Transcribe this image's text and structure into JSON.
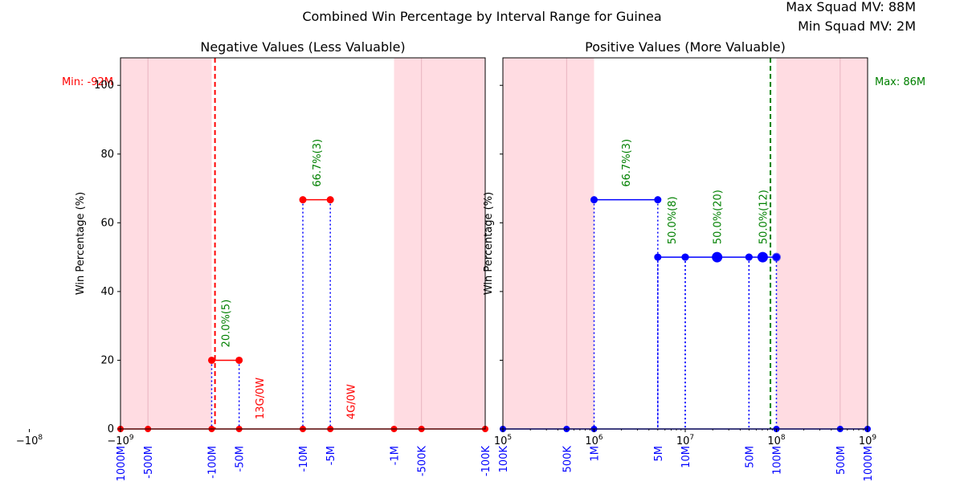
{
  "title": "Combined Win Percentage by Interval Range for Guinea",
  "squad": {
    "max_label": "Max Squad MV: 88M",
    "min_label": "Min Squad MV: 2M"
  },
  "ylabel": "Win Percentage (%)",
  "yticks": [
    "0",
    "20",
    "40",
    "60",
    "80",
    "100"
  ],
  "colors": {
    "neg": "#ff0000",
    "pos": "#0000ff",
    "shade": "#ffc0cb",
    "annot": "#008000",
    "maxline": "#008000"
  },
  "chart_data": [
    {
      "type": "line",
      "title": "Negative Values (Less Valuable)",
      "xscale": "symlog-negative",
      "xlim": [
        -1000000000,
        -100000
      ],
      "ylim": [
        0,
        108
      ],
      "xtick_labels": [
        "−10^9",
        "−10^8",
        "−10^7",
        "−10^6",
        "−10^5"
      ],
      "interval_labels": [
        "-1000M",
        "-500M",
        "-100M",
        "-50M",
        "-10M",
        "-5M",
        "-1M",
        "-500K",
        "-100K"
      ],
      "minline": {
        "value": -92000000,
        "label": "Min: -92M"
      },
      "segments": [
        {
          "x0": -100000000,
          "x1": -50000000,
          "win_pct": 20.0,
          "label": "20.0%(5)"
        },
        {
          "x0": -10000000,
          "x1": -5000000,
          "win_pct": 66.7,
          "label": "66.7%(3)"
        }
      ],
      "zero_markers": [
        -1000000000,
        -500000000,
        -100000000,
        -50000000,
        -10000000,
        -5000000,
        -1000000,
        -500000,
        -100000
      ],
      "zero_labels": [
        {
          "x": -30000000,
          "label": "13G/0W"
        },
        {
          "x": -3000000,
          "label": "4G/0W"
        }
      ],
      "shaded_ranges": [
        [
          -1000000000,
          -100000000
        ],
        [
          -1000000,
          -100000
        ]
      ]
    },
    {
      "type": "line",
      "title": "Positive Values (More Valuable)",
      "xscale": "log",
      "xlim": [
        100000,
        1000000000
      ],
      "ylim": [
        0,
        108
      ],
      "xtick_labels": [
        "10^5",
        "10^6",
        "10^7",
        "10^8",
        "10^9"
      ],
      "interval_labels": [
        "100K",
        "500K",
        "1M",
        "5M",
        "10M",
        "50M",
        "100M",
        "500M",
        "1000M"
      ],
      "maxline": {
        "value": 86000000,
        "label": "Max: 86M"
      },
      "segments": [
        {
          "x0": 1000000,
          "x1": 5000000,
          "win_pct": 66.7,
          "label": "66.7%(3)"
        },
        {
          "x0": 5000000,
          "x1": 10000000,
          "win_pct": 50.0,
          "label": "50.0%(8)"
        },
        {
          "x0": 10000000,
          "x1": 50000000,
          "win_pct": 50.0,
          "label": "50.0%(20)"
        },
        {
          "x0": 50000000,
          "x1": 100000000,
          "win_pct": 50.0,
          "label": "50.0%(12)"
        }
      ],
      "zero_markers": [
        100000,
        500000,
        1000000,
        100000000,
        500000000,
        1000000000
      ],
      "shaded_ranges": [
        [
          100000,
          1000000
        ],
        [
          100000000,
          1000000000
        ]
      ]
    }
  ]
}
